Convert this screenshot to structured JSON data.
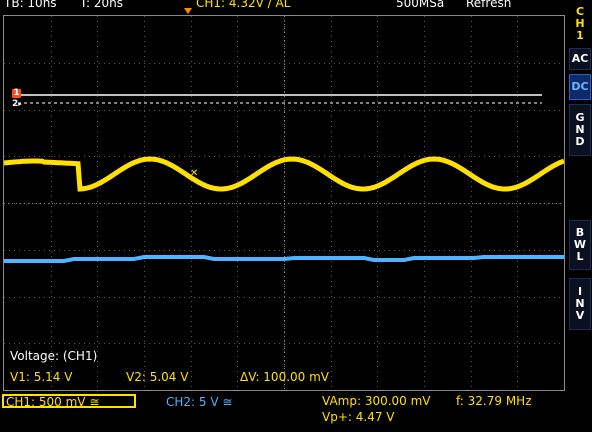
{
  "status_bar": {
    "timebase": "TB: 10ns",
    "trigger_time": "T: 20ns",
    "trigger_info": "CH1: 4.32V / AL",
    "sample_rate": "500MSa",
    "mode": "Refresh"
  },
  "side_panel": {
    "channel_label": [
      "C",
      "H",
      "1"
    ],
    "ac": "AC",
    "dc": "DC",
    "gnd": [
      "G",
      "N",
      "D"
    ],
    "bwl": [
      "B",
      "W",
      "L"
    ],
    "inv": [
      "I",
      "N",
      "V"
    ],
    "active_coupling": "DC"
  },
  "markers": {
    "ch1": "1",
    "ch2": "2"
  },
  "cursor_readout": {
    "title": "Voltage: (CH1)",
    "v1": "V1: 5.14 V",
    "v2": "V2: 5.04 V",
    "delta": "ΔV: 100.00 mV"
  },
  "bottom_bar": {
    "ch1": "CH1: 500 mV ≅",
    "ch2": "CH2: 5 V ≅",
    "vamp": "VAmp: 300.00 mV",
    "freq": "f: 32.79 MHz",
    "vpp": "Vp+: 4.47 V"
  },
  "colors": {
    "ch1": "#ffe000",
    "ch2": "#4fb3ff",
    "grid": "#5a5a5a",
    "side_accent": "#6fb4ff"
  },
  "icons": [
    "trigger-marker-icon",
    "ch1-ground-marker-icon",
    "ch2-ground-marker-icon"
  ]
}
